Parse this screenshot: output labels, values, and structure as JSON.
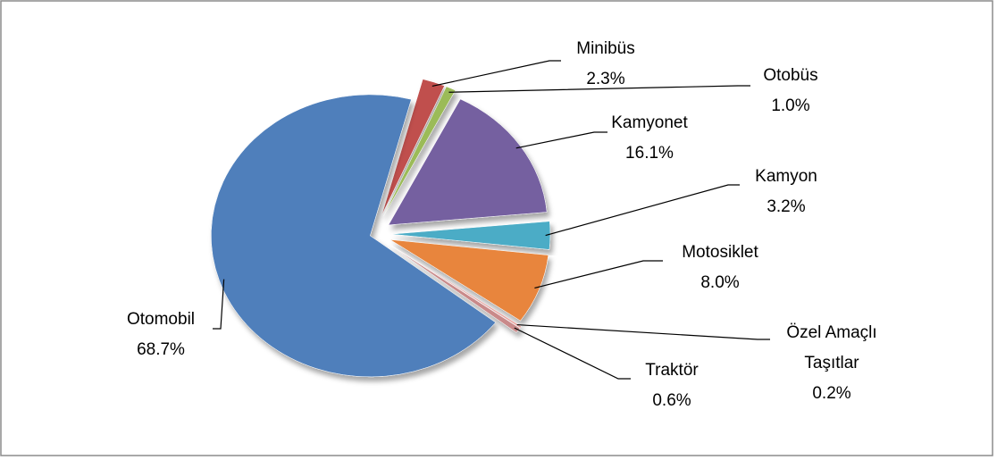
{
  "chart_data": {
    "type": "pie",
    "categories": [
      "Minibüs",
      "Otobüs",
      "Kamyonet",
      "Kamyon",
      "Motosiklet",
      "Özel Amaçlı Taşıtlar",
      "Traktör",
      "Otomobil"
    ],
    "values": [
      2.3,
      1.0,
      16.1,
      3.2,
      8.0,
      0.2,
      0.6,
      68.7
    ],
    "value_labels": [
      "2.3%",
      "1.0%",
      "16.1%",
      "3.2%",
      "8.0%",
      "0.2%",
      "0.6%",
      "68.7%"
    ],
    "colors": [
      "#c0504d",
      "#9bbb59",
      "#7460a0",
      "#4bacc6",
      "#e8853d",
      "#f2a7a3",
      "#c98a8a",
      "#4f7fbb"
    ]
  }
}
